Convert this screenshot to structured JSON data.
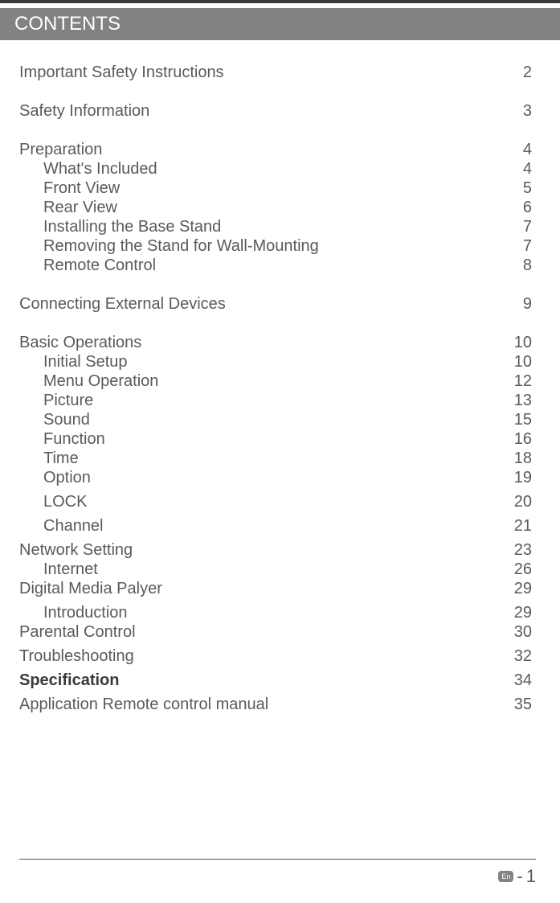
{
  "header_title": "CONTENTS",
  "footer": {
    "lang": "En",
    "dash": "-",
    "page": "1"
  },
  "toc": [
    {
      "type": "section",
      "title": "Important Safety Instructions",
      "page": "2",
      "gap": "big"
    },
    {
      "type": "section",
      "title": "Safety Information",
      "page": "3",
      "gap": "big"
    },
    {
      "type": "section",
      "title": "Preparation",
      "page": "4",
      "gap": "small"
    },
    {
      "type": "sub",
      "title": "What's Included",
      "page": "4",
      "gap": "small"
    },
    {
      "type": "sub",
      "title": "Front View",
      "page": "5",
      "gap": "small"
    },
    {
      "type": "sub",
      "title": "Rear View",
      "page": "6",
      "gap": "small"
    },
    {
      "type": "sub",
      "title": "Installing the Base Stand",
      "page": "7",
      "gap": "small"
    },
    {
      "type": "sub",
      "title": "Removing the Stand for Wall-Mounting",
      "page": "7",
      "gap": "small"
    },
    {
      "type": "sub",
      "title": "Remote Control",
      "page": "8",
      "gap": "big"
    },
    {
      "type": "section",
      "title": "Connecting External Devices",
      "page": "9",
      "gap": "big"
    },
    {
      "type": "section",
      "title": "Basic Operations",
      "page": "10",
      "gap": "small"
    },
    {
      "type": "sub",
      "title": "Initial Setup",
      "page": "10",
      "gap": "small"
    },
    {
      "type": "sub",
      "title": "Menu Operation",
      "page": "12",
      "gap": "small"
    },
    {
      "type": "sub",
      "title": "Picture",
      "page": "13",
      "gap": "small"
    },
    {
      "type": "sub",
      "title": "Sound",
      "page": "15",
      "gap": "small"
    },
    {
      "type": "sub",
      "title": "Function",
      "page": "16",
      "gap": "small"
    },
    {
      "type": "sub",
      "title": "Time",
      "page": "18",
      "gap": "small"
    },
    {
      "type": "sub",
      "title": "Option",
      "page": "19",
      "gap": "tight"
    },
    {
      "type": "sub",
      "title": "LOCK",
      "page": "20",
      "gap": "tight"
    },
    {
      "type": "sub",
      "title": "Channel",
      "page": "21",
      "gap": "tight"
    },
    {
      "type": "section",
      "title": "Network Setting",
      "page": "23",
      "gap": "small"
    },
    {
      "type": "sub",
      "title": "Internet",
      "page": "26",
      "gap": "small"
    },
    {
      "type": "section",
      "title": "Digital Media Palyer",
      "page": "29",
      "gap": "tight"
    },
    {
      "type": "sub",
      "title": "Introduction",
      "page": "29",
      "gap": "small"
    },
    {
      "type": "section",
      "title": "Parental Control",
      "page": "30",
      "gap": "tight"
    },
    {
      "type": "section",
      "title": "Troubleshooting",
      "page": "32",
      "gap": "tight"
    },
    {
      "type": "section",
      "title": "Specification",
      "page": "34",
      "gap": "tight",
      "bold": true
    },
    {
      "type": "section",
      "title": "Application Remote control manual",
      "page": "35",
      "gap": "tight"
    }
  ]
}
